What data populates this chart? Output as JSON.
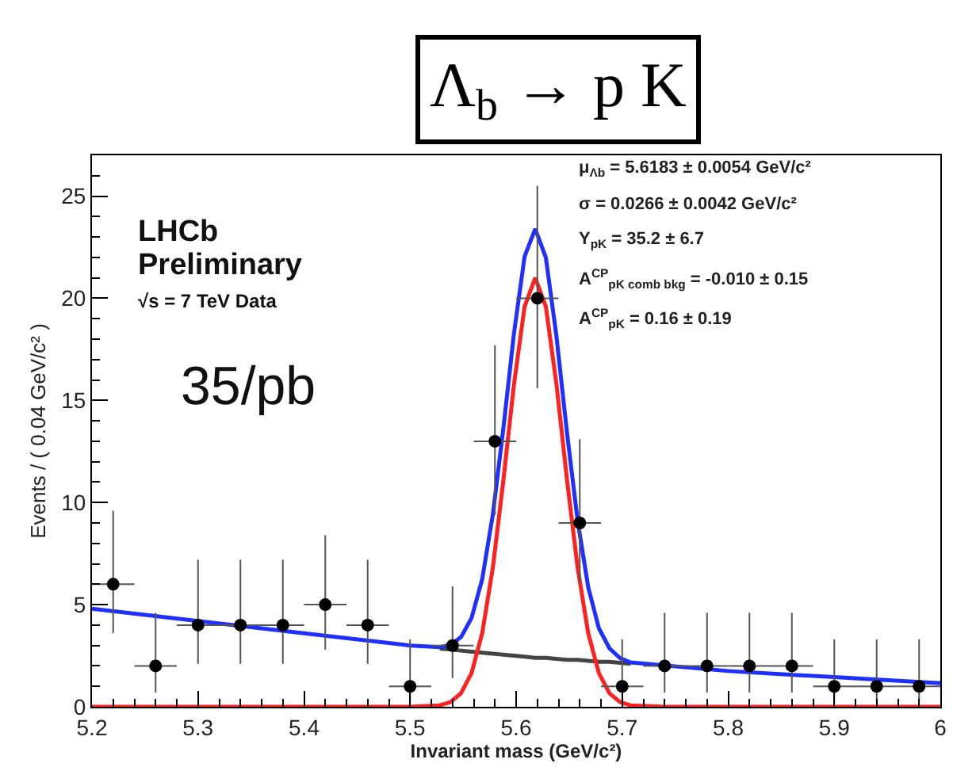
{
  "chart_data": {
    "type": "scatter",
    "title": "Λ$_{b}$ → p K",
    "xlabel": "Invariant mass (GeV/c²)",
    "ylabel": "Events / ( 0.04 GeV/c² )",
    "xlim": [
      5.2,
      6.0
    ],
    "xticks": [
      5.2,
      5.3,
      5.4,
      5.5,
      5.6,
      5.7,
      5.8,
      5.9,
      {
        "value": 6.0,
        "label": "6"
      }
    ],
    "ylim": [
      0,
      27
    ],
    "yticks": [
      0,
      5,
      10,
      15,
      20,
      25
    ],
    "annotations": [
      "LHCb",
      "Preliminary",
      "√s = 7 TeV Data",
      "35/pb",
      "μ$_{Λb}$ = 5.6183 ± 0.0054 GeV/c²",
      "σ = 0.0266 ± 0.0042 GeV/c²",
      "Y$_{pK}$ = 35.2 ± 6.7",
      "A$^{CP}$$_{pK comb bkg}$ = -0.010 ± 0.15",
      "A$^{CP}$$_{pK}$ = 0.16 ± 0.19"
    ],
    "series": [
      {
        "type": "line",
        "color": "#444444",
        "line_style": "solid",
        "marker": "none",
        "x": [
          5.528,
          5.538,
          5.548,
          5.558,
          5.568,
          5.578,
          5.588,
          5.598,
          5.608,
          5.618,
          5.628,
          5.638,
          5.648,
          5.658,
          5.668,
          5.678,
          5.688,
          5.698,
          5.708
        ],
        "values": [
          2.85,
          2.8,
          2.75,
          2.7,
          2.65,
          2.6,
          2.55,
          2.5,
          2.45,
          2.4,
          2.4,
          2.35,
          2.3,
          2.3,
          2.25,
          2.2,
          2.2,
          2.15,
          2.1
        ]
      },
      {
        "type": "line",
        "color": "#ff2020",
        "line_style": "solid",
        "marker": "none",
        "x": [
          5.2,
          5.5,
          5.528,
          5.538,
          5.548,
          5.558,
          5.568,
          5.578,
          5.588,
          5.598,
          5.608,
          5.618,
          5.628,
          5.638,
          5.648,
          5.658,
          5.668,
          5.678,
          5.688,
          5.698,
          5.708,
          5.74,
          6.0
        ],
        "values": [
          0,
          0,
          0.07,
          0.23,
          0.66,
          1.65,
          3.6,
          6.8,
          11.1,
          15.8,
          19.6,
          21,
          19.6,
          15.8,
          11.1,
          6.8,
          3.6,
          1.65,
          0.66,
          0.23,
          0.07,
          0,
          0
        ]
      },
      {
        "type": "line",
        "color": "#1f2fff",
        "line_style": "solid",
        "marker": "none",
        "x": [
          5.2,
          5.3,
          5.4,
          5.5,
          5.528,
          5.538,
          5.548,
          5.558,
          5.568,
          5.578,
          5.588,
          5.598,
          5.608,
          5.618,
          5.628,
          5.638,
          5.648,
          5.658,
          5.668,
          5.678,
          5.688,
          5.698,
          5.708,
          5.8,
          5.9,
          6.0
        ],
        "values": [
          4.8,
          4.2,
          3.6,
          3.0,
          2.92,
          3.03,
          3.41,
          4.35,
          6.25,
          9.4,
          13.65,
          18.3,
          22.05,
          23.4,
          22.0,
          18.15,
          13.4,
          9.1,
          5.85,
          3.85,
          2.86,
          2.38,
          2.17,
          1.75,
          1.45,
          1.15
        ]
      },
      {
        "type": "scatter",
        "color": "#000000",
        "marker": "circle",
        "x": [
          5.22,
          5.26,
          5.3,
          5.34,
          5.38,
          5.42,
          5.46,
          5.5,
          5.54,
          5.58,
          5.62,
          5.66,
          5.7,
          5.74,
          5.78,
          5.82,
          5.86,
          5.9,
          5.94,
          5.98
        ],
        "values": [
          6,
          2,
          4,
          4,
          4,
          5,
          4,
          1,
          3,
          13,
          20,
          9,
          1,
          2,
          2,
          2,
          2,
          1,
          1,
          1
        ],
        "errors": [
          [
            3.6,
            9.6
          ],
          [
            0.7,
            4.6
          ],
          [
            2.1,
            7.2
          ],
          [
            2.1,
            7.2
          ],
          [
            2.1,
            7.2
          ],
          [
            2.8,
            8.4
          ],
          [
            2.1,
            7.2
          ],
          [
            0.2,
            3.3
          ],
          [
            1.4,
            5.9
          ],
          [
            9.4,
            17.7
          ],
          [
            15.6,
            25.5
          ],
          [
            6.1,
            13.1
          ],
          [
            0.2,
            3.3
          ],
          [
            0.7,
            4.6
          ],
          [
            0.7,
            4.6
          ],
          [
            0.7,
            4.6
          ],
          [
            0.7,
            4.6
          ],
          [
            0.2,
            3.3
          ],
          [
            0.2,
            3.3
          ],
          [
            0.2,
            3.3
          ]
        ],
        "xerrors": [
          0.02,
          0.02,
          0.02,
          0.02,
          0.02,
          0.02,
          0.02,
          0.02,
          0.02,
          0.02,
          0.02,
          0.02,
          0.02,
          0.02,
          0.02,
          0.02,
          0.02,
          0.02,
          0.02,
          0.02
        ]
      }
    ]
  }
}
